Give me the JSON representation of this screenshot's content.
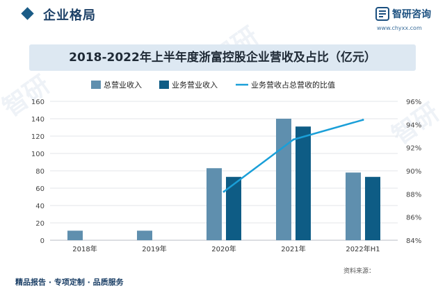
{
  "header": {
    "section_title": "企业格局",
    "brand_name": "智研咨询",
    "brand_url": "www.chyxx.com"
  },
  "chart_data": {
    "type": "bar",
    "title": "2018-2022年上半年度浙富控股企业营收及占比（亿元）",
    "categories": [
      "2018年",
      "2019年",
      "2020年",
      "2021年",
      "2022年H1"
    ],
    "series": [
      {
        "name": "总营业收入",
        "values": [
          11,
          11,
          83,
          140,
          78
        ],
        "color": "#5f8fae"
      },
      {
        "name": "业务营业收入",
        "values": [
          null,
          null,
          73,
          131,
          73
        ],
        "color": "#0e5c85"
      },
      {
        "name": "业务营收占总营收的比值",
        "type": "line",
        "axis": "right",
        "values": [
          null,
          null,
          88.2,
          92.7,
          94.4
        ],
        "color": "#1a9fd8"
      }
    ],
    "y_left": {
      "min": 0,
      "max": 160,
      "ticks": [
        "0",
        "20",
        "40",
        "60",
        "80",
        "100",
        "120",
        "140",
        "160"
      ]
    },
    "y_right": {
      "min": 84,
      "max": 96,
      "ticks": [
        "84%",
        "86%",
        "88%",
        "90%",
        "92%",
        "94%",
        "96%"
      ]
    },
    "grid": true,
    "legend": "top-center"
  },
  "footer": {
    "left_text": "精品报告 · 专项定制 · 品质服务",
    "source_text": "资料来源："
  }
}
